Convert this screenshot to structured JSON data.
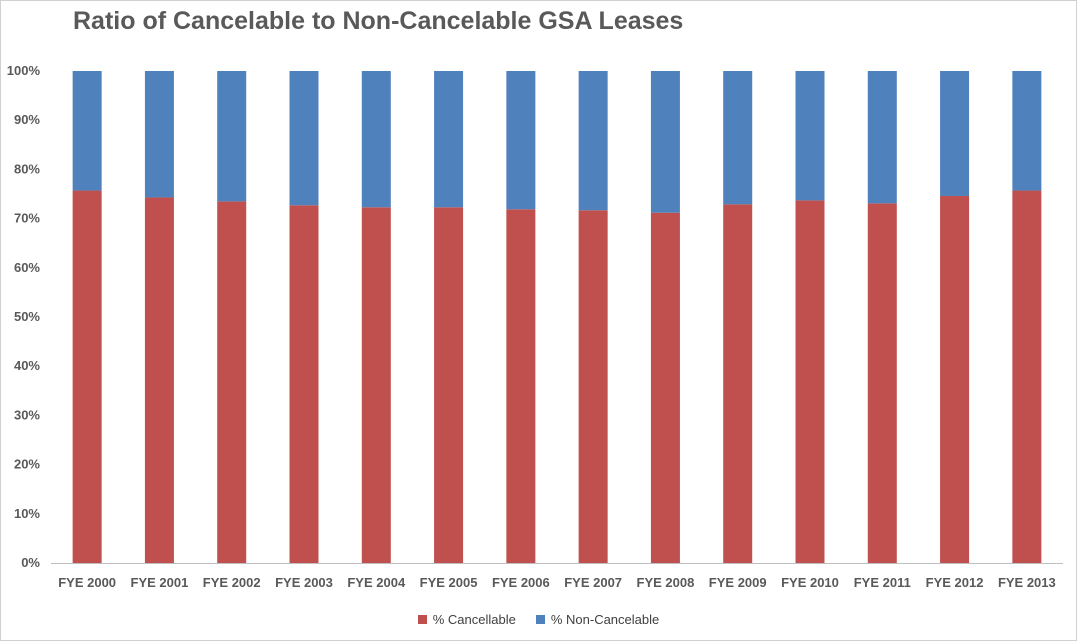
{
  "chart_data": {
    "type": "bar",
    "stacked": true,
    "title": "Ratio of Cancelable to Non-Cancelable GSA Leases",
    "categories": [
      "FYE 2000",
      "FYE 2001",
      "FYE 2002",
      "FYE 2003",
      "FYE 2004",
      "FYE 2005",
      "FYE 2006",
      "FYE 2007",
      "FYE 2008",
      "FYE 2009",
      "FYE 2010",
      "FYE 2011",
      "FYE 2012",
      "FYE 2013"
    ],
    "series": [
      {
        "name": "% Cancellable",
        "color": "#c0504d",
        "values": [
          75.7,
          74.3,
          73.5,
          72.7,
          72.3,
          72.3,
          71.9,
          71.7,
          71.2,
          72.9,
          73.7,
          73.1,
          74.6,
          75.7
        ]
      },
      {
        "name": "% Non-Cancelable",
        "color": "#4f81bd",
        "values": [
          24.3,
          25.7,
          26.5,
          27.3,
          27.7,
          27.7,
          28.1,
          28.3,
          28.8,
          27.1,
          26.3,
          26.9,
          25.4,
          24.3
        ]
      }
    ],
    "ylim": [
      0,
      100
    ],
    "yticks": [
      "0%",
      "10%",
      "20%",
      "30%",
      "40%",
      "50%",
      "60%",
      "70%",
      "80%",
      "90%",
      "100%"
    ],
    "legend_position": "bottom",
    "grid": false
  }
}
